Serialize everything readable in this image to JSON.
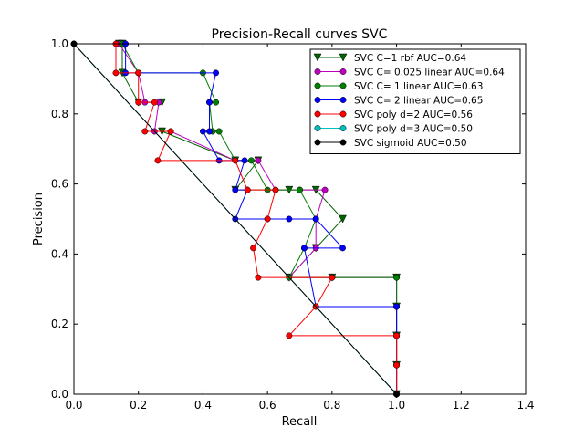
{
  "chart_data": {
    "type": "line",
    "title": "Precision-Recall curves SVC",
    "xlabel": "Recall",
    "ylabel": "Precision",
    "xlim": [
      0,
      1.4
    ],
    "ylim": [
      0,
      1.0
    ],
    "xticks": [
      0.0,
      0.2,
      0.4,
      0.6,
      0.8,
      1.0,
      1.2,
      1.4
    ],
    "yticks": [
      0.0,
      0.2,
      0.4,
      0.6,
      0.8,
      1.0
    ],
    "xtick_labels": [
      "0.0",
      "0.2",
      "0.4",
      "0.6",
      "0.8",
      "1.0",
      "1.2",
      "1.4"
    ],
    "ytick_labels": [
      "0.0",
      "0.2",
      "0.4",
      "0.6",
      "0.8",
      "1.0"
    ],
    "grid": false,
    "legend_position": "top-right",
    "series": [
      {
        "name": "SVC C=1 rbf AUC=0.64",
        "color": "#006400",
        "marker": "triangle-down",
        "points": [
          [
            1.0,
            0.0
          ],
          [
            1.0,
            0.083
          ],
          [
            1.0,
            0.167
          ],
          [
            1.0,
            0.25
          ],
          [
            1.0,
            0.333
          ],
          [
            0.8,
            0.333
          ],
          [
            0.667,
            0.333
          ],
          [
            0.75,
            0.417
          ],
          [
            0.833,
            0.5
          ],
          [
            0.75,
            0.583
          ],
          [
            0.667,
            0.583
          ],
          [
            0.5,
            0.583
          ],
          [
            0.571,
            0.667
          ],
          [
            0.5,
            0.667
          ],
          [
            0.273,
            0.75
          ],
          [
            0.273,
            0.833
          ],
          [
            0.2,
            0.833
          ],
          [
            0.15,
            0.917
          ],
          [
            0.15,
            1.0
          ],
          [
            0.14,
            1.0
          ]
        ]
      },
      {
        "name": "SVC C= 0.025 linear  AUC=0.64",
        "color": "#bf00bf",
        "marker": "circle",
        "points": [
          [
            1.0,
            0.0
          ],
          [
            1.0,
            0.083
          ],
          [
            1.0,
            0.167
          ],
          [
            1.0,
            0.25
          ],
          [
            1.0,
            0.333
          ],
          [
            0.8,
            0.333
          ],
          [
            0.667,
            0.333
          ],
          [
            0.75,
            0.417
          ],
          [
            0.75,
            0.5
          ],
          [
            0.778,
            0.583
          ],
          [
            0.7,
            0.583
          ],
          [
            0.625,
            0.583
          ],
          [
            0.571,
            0.667
          ],
          [
            0.5,
            0.667
          ],
          [
            0.3,
            0.75
          ],
          [
            0.25,
            0.75
          ],
          [
            0.263,
            0.833
          ],
          [
            0.22,
            0.833
          ],
          [
            0.2,
            0.917
          ],
          [
            0.14,
            1.0
          ]
        ]
      },
      {
        "name": "SVC C= 1 linear AUC=0.63",
        "color": "#007f00",
        "marker": "circle",
        "points": [
          [
            1.0,
            0.0
          ],
          [
            1.0,
            0.083
          ],
          [
            1.0,
            0.167
          ],
          [
            1.0,
            0.25
          ],
          [
            1.0,
            0.333
          ],
          [
            0.8,
            0.333
          ],
          [
            0.667,
            0.333
          ],
          [
            0.714,
            0.417
          ],
          [
            0.75,
            0.5
          ],
          [
            0.7,
            0.583
          ],
          [
            0.6,
            0.583
          ],
          [
            0.55,
            0.667
          ],
          [
            0.5,
            0.667
          ],
          [
            0.45,
            0.75
          ],
          [
            0.43,
            0.75
          ],
          [
            0.42,
            0.833
          ],
          [
            0.44,
            0.833
          ],
          [
            0.4,
            0.917
          ],
          [
            0.2,
            0.917
          ],
          [
            0.15,
            1.0
          ]
        ]
      },
      {
        "name": "SVC C= 2 linear AUC=0.65",
        "color": "#0000ff",
        "marker": "circle",
        "points": [
          [
            1.0,
            0.0
          ],
          [
            1.0,
            0.083
          ],
          [
            1.0,
            0.167
          ],
          [
            1.0,
            0.25
          ],
          [
            0.75,
            0.25
          ],
          [
            0.714,
            0.417
          ],
          [
            0.833,
            0.417
          ],
          [
            0.75,
            0.5
          ],
          [
            0.667,
            0.5
          ],
          [
            0.6,
            0.5
          ],
          [
            0.5,
            0.5
          ],
          [
            0.538,
            0.583
          ],
          [
            0.5,
            0.583
          ],
          [
            0.529,
            0.667
          ],
          [
            0.45,
            0.667
          ],
          [
            0.4,
            0.75
          ],
          [
            0.42,
            0.75
          ],
          [
            0.42,
            0.833
          ],
          [
            0.44,
            0.917
          ],
          [
            0.16,
            0.917
          ],
          [
            0.16,
            1.0
          ]
        ]
      },
      {
        "name": "SVC poly d=2 AUC=0.56",
        "color": "#ff0000",
        "marker": "circle",
        "points": [
          [
            1.0,
            0.0
          ],
          [
            1.0,
            0.083
          ],
          [
            1.0,
            0.167
          ],
          [
            0.667,
            0.167
          ],
          [
            0.75,
            0.25
          ],
          [
            0.8,
            0.333
          ],
          [
            0.571,
            0.333
          ],
          [
            0.556,
            0.417
          ],
          [
            0.6,
            0.5
          ],
          [
            0.625,
            0.583
          ],
          [
            0.538,
            0.583
          ],
          [
            0.5,
            0.667
          ],
          [
            0.26,
            0.667
          ],
          [
            0.3,
            0.75
          ],
          [
            0.22,
            0.75
          ],
          [
            0.25,
            0.833
          ],
          [
            0.2,
            0.833
          ],
          [
            0.2,
            0.917
          ],
          [
            0.13,
            0.917
          ],
          [
            0.13,
            1.0
          ]
        ]
      },
      {
        "name": "SVC poly d=3 AUC=0.50",
        "color": "#00bfbf",
        "marker": "circle",
        "points": [
          [
            1.0,
            0.0
          ],
          [
            0.0,
            1.0
          ]
        ]
      },
      {
        "name": "SVC sigmoid AUC=0.50",
        "color": "#000000",
        "marker": "circle",
        "points": [
          [
            1.0,
            0.0
          ],
          [
            0.0,
            1.0
          ]
        ]
      }
    ]
  }
}
